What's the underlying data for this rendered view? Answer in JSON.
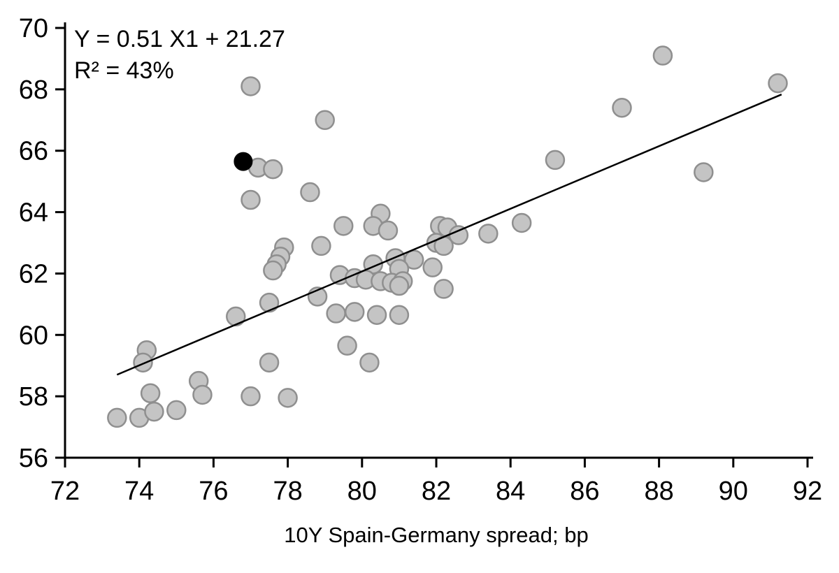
{
  "chart_data": {
    "type": "scatter",
    "title": "",
    "xlabel": "10Y Spain-Germany spread; bp",
    "ylabel": "",
    "xlim": [
      72,
      92
    ],
    "ylim": [
      56,
      70
    ],
    "x_ticks": [
      72,
      74,
      76,
      78,
      80,
      82,
      84,
      86,
      88,
      90,
      92
    ],
    "y_ticks": [
      56,
      58,
      60,
      62,
      64,
      66,
      68,
      70
    ],
    "grid": false,
    "legend": false,
    "annotation": {
      "equation": "Y = 0.51 X1 + 21.27",
      "r_squared": "R² = 43%"
    },
    "trendline": {
      "slope": 0.51,
      "intercept": 21.27,
      "x_start": 73.4,
      "x_end": 91.3,
      "color": "#000000",
      "width": 2.5
    },
    "axis_color": "#000000",
    "tick_font_size": 38,
    "series": [
      {
        "name": "observations",
        "marker_fill": "#c4c4c4",
        "marker_stroke": "#8f8f8f",
        "marker_radius": 13,
        "points": [
          [
            77.0,
            68.1
          ],
          [
            79.0,
            67.0
          ],
          [
            88.1,
            69.1
          ],
          [
            91.2,
            68.2
          ],
          [
            87.0,
            67.4
          ],
          [
            85.2,
            65.7
          ],
          [
            89.2,
            65.3
          ],
          [
            77.2,
            65.45
          ],
          [
            77.6,
            65.4
          ],
          [
            78.6,
            64.65
          ],
          [
            77.0,
            64.4
          ],
          [
            80.5,
            63.95
          ],
          [
            80.3,
            63.55
          ],
          [
            80.7,
            63.4
          ],
          [
            79.5,
            63.55
          ],
          [
            82.1,
            63.55
          ],
          [
            82.3,
            63.5
          ],
          [
            84.3,
            63.65
          ],
          [
            83.4,
            63.3
          ],
          [
            82.6,
            63.25
          ],
          [
            78.9,
            62.9
          ],
          [
            82.0,
            63.0
          ],
          [
            82.2,
            62.9
          ],
          [
            77.9,
            62.85
          ],
          [
            77.8,
            62.55
          ],
          [
            77.7,
            62.3
          ],
          [
            77.6,
            62.1
          ],
          [
            80.9,
            62.5
          ],
          [
            81.4,
            62.45
          ],
          [
            80.3,
            62.3
          ],
          [
            81.0,
            62.15
          ],
          [
            81.9,
            62.2
          ],
          [
            79.4,
            61.95
          ],
          [
            79.8,
            61.85
          ],
          [
            80.1,
            61.8
          ],
          [
            80.5,
            61.75
          ],
          [
            80.8,
            61.7
          ],
          [
            81.1,
            61.75
          ],
          [
            81.0,
            61.6
          ],
          [
            78.8,
            61.25
          ],
          [
            82.2,
            61.5
          ],
          [
            77.5,
            61.05
          ],
          [
            76.6,
            60.6
          ],
          [
            79.3,
            60.7
          ],
          [
            79.8,
            60.75
          ],
          [
            80.4,
            60.65
          ],
          [
            81.0,
            60.65
          ],
          [
            79.6,
            59.65
          ],
          [
            80.2,
            59.1
          ],
          [
            74.2,
            59.5
          ],
          [
            74.1,
            59.1
          ],
          [
            77.5,
            59.1
          ],
          [
            75.6,
            58.5
          ],
          [
            74.3,
            58.1
          ],
          [
            75.7,
            58.05
          ],
          [
            77.0,
            58.0
          ],
          [
            78.0,
            57.95
          ],
          [
            73.4,
            57.3
          ],
          [
            74.0,
            57.3
          ],
          [
            74.4,
            57.5
          ],
          [
            75.0,
            57.55
          ]
        ]
      },
      {
        "name": "highlighted-observation",
        "marker_fill": "#000000",
        "marker_stroke": "#000000",
        "marker_radius": 12.5,
        "points": [
          [
            76.8,
            65.65
          ]
        ]
      }
    ]
  }
}
